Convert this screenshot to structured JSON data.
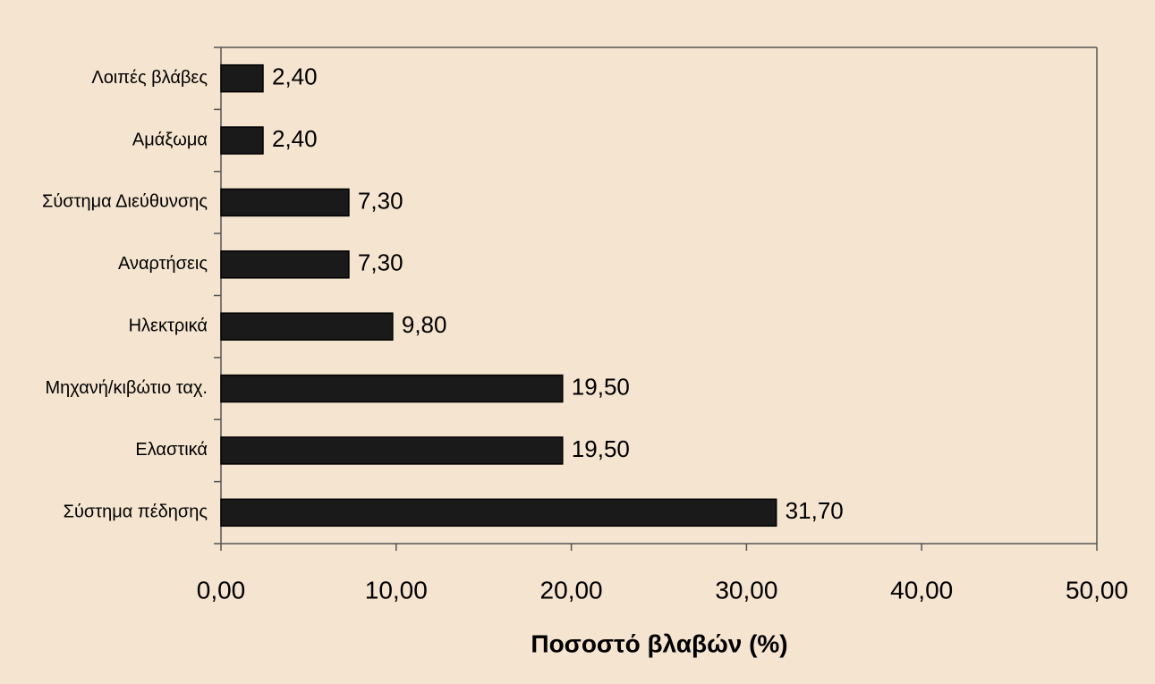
{
  "chart_data": {
    "type": "bar",
    "orientation": "horizontal",
    "x_label": "Ποσοστό βλαβών (%)",
    "categories": [
      "Λοιπές βλάβες",
      "Αμάξωμα",
      "Σύστημα Διεύθυνσης",
      "Αναρτήσεις",
      "Ηλεκτρικά",
      "Μηχανή/κιβώτιο ταχ.",
      "Ελαστικά",
      "Σύστημα πέδησης"
    ],
    "values": [
      2.4,
      2.4,
      7.3,
      7.3,
      9.8,
      19.5,
      19.5,
      31.7
    ],
    "value_labels": [
      "2,40",
      "2,40",
      "7,30",
      "7,30",
      "9,80",
      "19,50",
      "19,50",
      "31,70"
    ],
    "color": "#1a1a1a",
    "xlim": [
      0,
      50
    ],
    "xticks": [
      {
        "value": 0,
        "label": "0,00"
      },
      {
        "value": 10,
        "label": "10,00"
      },
      {
        "value": 20,
        "label": "20,00"
      },
      {
        "value": 30,
        "label": "30,00"
      },
      {
        "value": 40,
        "label": "40,00"
      },
      {
        "value": 50,
        "label": "50,00"
      }
    ],
    "grid": false
  }
}
